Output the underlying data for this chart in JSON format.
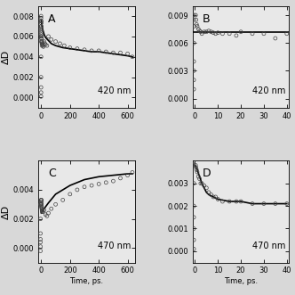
{
  "panels": [
    {
      "label": "A",
      "wavelength": "420 nm",
      "xlim": [
        -20,
        650
      ],
      "ylim": [
        -0.001,
        0.009
      ],
      "yticks": [
        0.0,
        0.002,
        0.004,
        0.006,
        0.008
      ],
      "ytick_labels": [
        "0.000",
        "0.002",
        "0.004",
        "0.006",
        "0.008"
      ],
      "xticks": [
        0,
        200,
        400,
        600
      ],
      "scatter_x": [
        -1,
        -1,
        -1,
        -1,
        -1,
        -1,
        -1,
        -1,
        -1,
        -1,
        0,
        0,
        0,
        0,
        0,
        0,
        0,
        0,
        0,
        0,
        2,
        3,
        4,
        5,
        6,
        7,
        8,
        10,
        12,
        15,
        20,
        25,
        30,
        40,
        50,
        70,
        100,
        130,
        160,
        200,
        250,
        300,
        350,
        400,
        450,
        500,
        550,
        600,
        633
      ],
      "scatter_y": [
        0.008,
        0.0078,
        0.0075,
        0.007,
        0.006,
        0.004,
        0.002,
        0.001,
        0.0005,
        0.0001,
        0.0075,
        0.0073,
        0.007,
        0.0068,
        0.0066,
        0.0064,
        0.0062,
        0.006,
        0.0058,
        0.0055,
        0.0058,
        0.0055,
        0.0053,
        0.0051,
        0.0055,
        0.0053,
        0.0052,
        0.0052,
        0.0051,
        0.005,
        0.0055,
        0.0053,
        0.0052,
        0.0051,
        0.006,
        0.0057,
        0.0055,
        0.0053,
        0.0051,
        0.0049,
        0.0048,
        0.0047,
        0.0046,
        0.0046,
        0.0045,
        0.0044,
        0.0044,
        0.0043,
        0.004
      ],
      "fit_x": [
        0,
        5,
        10,
        20,
        30,
        50,
        70,
        100,
        150,
        200,
        250,
        300,
        350,
        400,
        450,
        500,
        550,
        600,
        633
      ],
      "fit_y": [
        0.0076,
        0.007,
        0.0067,
        0.0062,
        0.0059,
        0.0056,
        0.0053,
        0.0051,
        0.0049,
        0.0048,
        0.0047,
        0.0046,
        0.0045,
        0.0045,
        0.0044,
        0.0043,
        0.0042,
        0.0041,
        0.004
      ]
    },
    {
      "label": "B",
      "wavelength": "420 nm",
      "xlim": [
        -1,
        41
      ],
      "ylim": [
        -0.001,
        0.01
      ],
      "yticks": [
        0.0,
        0.003,
        0.006,
        0.009
      ],
      "ytick_labels": [
        "0.000",
        "0.003",
        "0.006",
        "0.009"
      ],
      "xticks": [
        0,
        10,
        20,
        30,
        40
      ],
      "scatter_x": [
        -0.5,
        -0.5,
        -0.5,
        -0.5,
        -0.5,
        -0.5,
        -0.5,
        -0.5,
        0.3,
        0.5,
        0.7,
        1,
        1.5,
        2,
        2.5,
        3,
        4,
        5,
        6,
        7,
        8,
        9,
        10,
        12,
        15,
        18,
        20,
        25,
        30,
        35,
        40
      ],
      "scatter_y": [
        0.001,
        0.002,
        0.003,
        0.004,
        0.006,
        0.0078,
        0.0085,
        0.009,
        0.009,
        0.0085,
        0.008,
        0.0078,
        0.0075,
        0.0073,
        0.0072,
        0.007,
        0.0072,
        0.0072,
        0.0073,
        0.0072,
        0.0071,
        0.007,
        0.0071,
        0.007,
        0.007,
        0.0068,
        0.0072,
        0.007,
        0.007,
        0.0065,
        0.007
      ],
      "fit_x": [
        -1,
        0,
        1,
        5,
        10,
        15,
        20,
        25,
        30,
        35,
        40,
        41
      ],
      "fit_y": [
        0.0072,
        0.0072,
        0.0072,
        0.0072,
        0.0072,
        0.0072,
        0.0072,
        0.0072,
        0.0072,
        0.0072,
        0.0072,
        0.0072
      ]
    },
    {
      "label": "C",
      "wavelength": "470 nm",
      "xlim": [
        -20,
        650
      ],
      "ylim": [
        -0.001,
        0.006
      ],
      "yticks": [
        0.0,
        0.002,
        0.004
      ],
      "ytick_labels": [
        "0.000",
        "0.002",
        "0.004"
      ],
      "xticks": [
        0,
        200,
        400,
        600
      ],
      "scatter_x": [
        -5,
        -5,
        -5,
        -5,
        -5,
        -5,
        -5,
        0,
        0,
        0,
        0,
        0,
        0,
        0,
        1,
        2,
        3,
        4,
        5,
        6,
        7,
        8,
        9,
        10,
        20,
        30,
        40,
        50,
        70,
        100,
        150,
        200,
        250,
        300,
        350,
        400,
        450,
        500,
        550,
        600,
        633
      ],
      "scatter_y": [
        -0.0002,
        0.0001,
        0.0004,
        0.0006,
        0.001,
        0.002,
        0.003,
        0.0032,
        0.0033,
        0.0033,
        0.0033,
        0.0031,
        0.003,
        0.0029,
        0.003,
        0.0028,
        0.0028,
        0.0027,
        0.0026,
        0.0025,
        0.0026,
        0.0025,
        0.0026,
        0.0025,
        0.0026,
        0.0023,
        0.0022,
        0.0024,
        0.0027,
        0.003,
        0.0033,
        0.0037,
        0.004,
        0.0042,
        0.0043,
        0.0044,
        0.0045,
        0.0046,
        0.0048,
        0.005,
        0.0052
      ],
      "fit_x": [
        1,
        5,
        10,
        20,
        50,
        100,
        150,
        200,
        300,
        400,
        500,
        600,
        633
      ],
      "fit_y": [
        0.0024,
        0.0025,
        0.0026,
        0.0027,
        0.0031,
        0.0037,
        0.004,
        0.0043,
        0.0047,
        0.0049,
        0.005,
        0.0051,
        0.0051
      ]
    },
    {
      "label": "D",
      "wavelength": "470 nm",
      "xlim": [
        -1,
        41
      ],
      "ylim": [
        -0.0005,
        0.004
      ],
      "yticks": [
        0.0,
        0.001,
        0.002,
        0.003
      ],
      "ytick_labels": [
        "0.000",
        "0.001",
        "0.002",
        "0.003"
      ],
      "xticks": [
        0,
        10,
        20,
        30,
        40
      ],
      "scatter_x": [
        -0.5,
        -0.5,
        -0.5,
        -0.5,
        -0.5,
        -0.5,
        -0.5,
        -0.5,
        0.3,
        0.5,
        0.7,
        1,
        1.5,
        2,
        2.5,
        3,
        4,
        5,
        6,
        7,
        8,
        9,
        10,
        12,
        15,
        18,
        20,
        25,
        30,
        35,
        40
      ],
      "scatter_y": [
        0.0001,
        0.0005,
        0.001,
        0.0015,
        0.002,
        0.003,
        0.0038,
        0.004,
        0.0038,
        0.0037,
        0.0036,
        0.0035,
        0.0033,
        0.0032,
        0.003,
        0.003,
        0.0029,
        0.0028,
        0.0026,
        0.0025,
        0.0024,
        0.0024,
        0.0023,
        0.0022,
        0.0022,
        0.0022,
        0.0022,
        0.0021,
        0.0021,
        0.0021,
        0.0021
      ],
      "fit_x": [
        0,
        1,
        2,
        3,
        4,
        5,
        6,
        8,
        10,
        15,
        20,
        25,
        30,
        35,
        40
      ],
      "fit_y": [
        0.0038,
        0.0036,
        0.0033,
        0.003,
        0.0028,
        0.0026,
        0.0025,
        0.0024,
        0.0023,
        0.0022,
        0.0022,
        0.0021,
        0.0021,
        0.0021,
        0.0021
      ]
    }
  ],
  "xlabel": "Time, ps.",
  "ylabel": "ΔD",
  "scatter_color": "none",
  "scatter_edgecolor": "#444444",
  "scatter_size": 8,
  "line_color": "black",
  "line_width": 1.2,
  "font_size": 6,
  "label_font_size": 8,
  "fig_bg": "#d8d8d8",
  "panel_bg": "#e8e8e8"
}
